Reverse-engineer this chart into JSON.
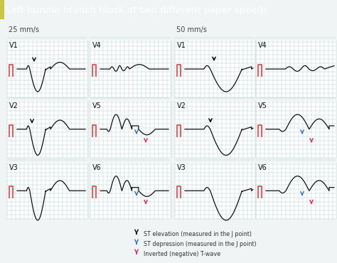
{
  "title": "Left bundle branch block at two different paper speeds",
  "title_bg": "#3dbcbc",
  "title_accent": "#c8c840",
  "title_color": "white",
  "title_fontsize": 9.5,
  "background_color": "#f0f4f4",
  "grid_color": "#b8cece",
  "ecg_color": "#111111",
  "cal_color": "#e05050",
  "arrow_black": "#111111",
  "arrow_blue": "#3377cc",
  "arrow_red": "#e03060",
  "speed_label_left": "25 mm/s",
  "speed_label_right": "50 mm/s",
  "legend": [
    {
      "color": "#111111",
      "text": "ST elevation (measured in the J point)"
    },
    {
      "color": "#3377cc",
      "text": "ST depression (measured in the J point)"
    },
    {
      "color": "#e03060",
      "text": "Inverted (negative) T-wave"
    }
  ],
  "fig_w": 4.74,
  "fig_h": 3.7,
  "dpi": 100
}
